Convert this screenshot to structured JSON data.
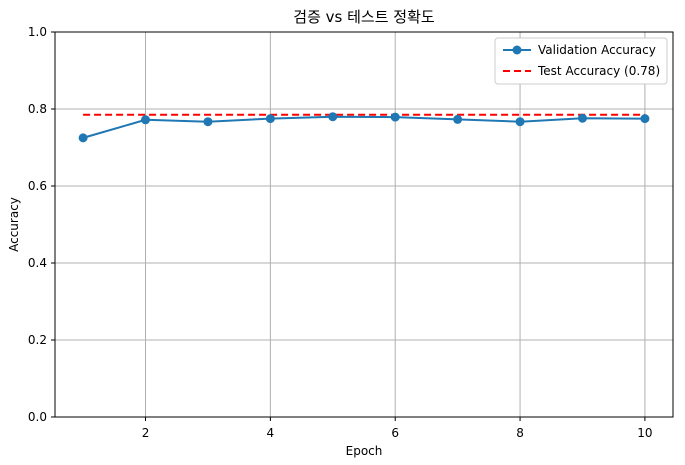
{
  "chart_data": {
    "type": "line",
    "title": "검증 vs 테스트 정확도",
    "xlabel": "Epoch",
    "ylabel": "Accuracy",
    "xlim": [
      0.55,
      10.45
    ],
    "ylim": [
      0.0,
      1.0
    ],
    "xticks": [
      2,
      4,
      6,
      8,
      10
    ],
    "yticks": [
      0.0,
      0.2,
      0.4,
      0.6,
      0.8,
      1.0
    ],
    "grid": true,
    "legend_position": "top-right",
    "x": [
      1,
      2,
      3,
      4,
      5,
      6,
      7,
      8,
      9,
      10
    ],
    "series": [
      {
        "name": "Validation Accuracy",
        "values": [
          0.725,
          0.772,
          0.767,
          0.775,
          0.78,
          0.779,
          0.773,
          0.767,
          0.776,
          0.775
        ],
        "color": "#1f77b4",
        "style": "solid",
        "marker": "circle"
      }
    ],
    "reference_lines": [
      {
        "name": "Test Accuracy (0.78)",
        "value": 0.785,
        "x_range": [
          1,
          10
        ],
        "color": "#ff0000",
        "style": "dashed"
      }
    ]
  }
}
